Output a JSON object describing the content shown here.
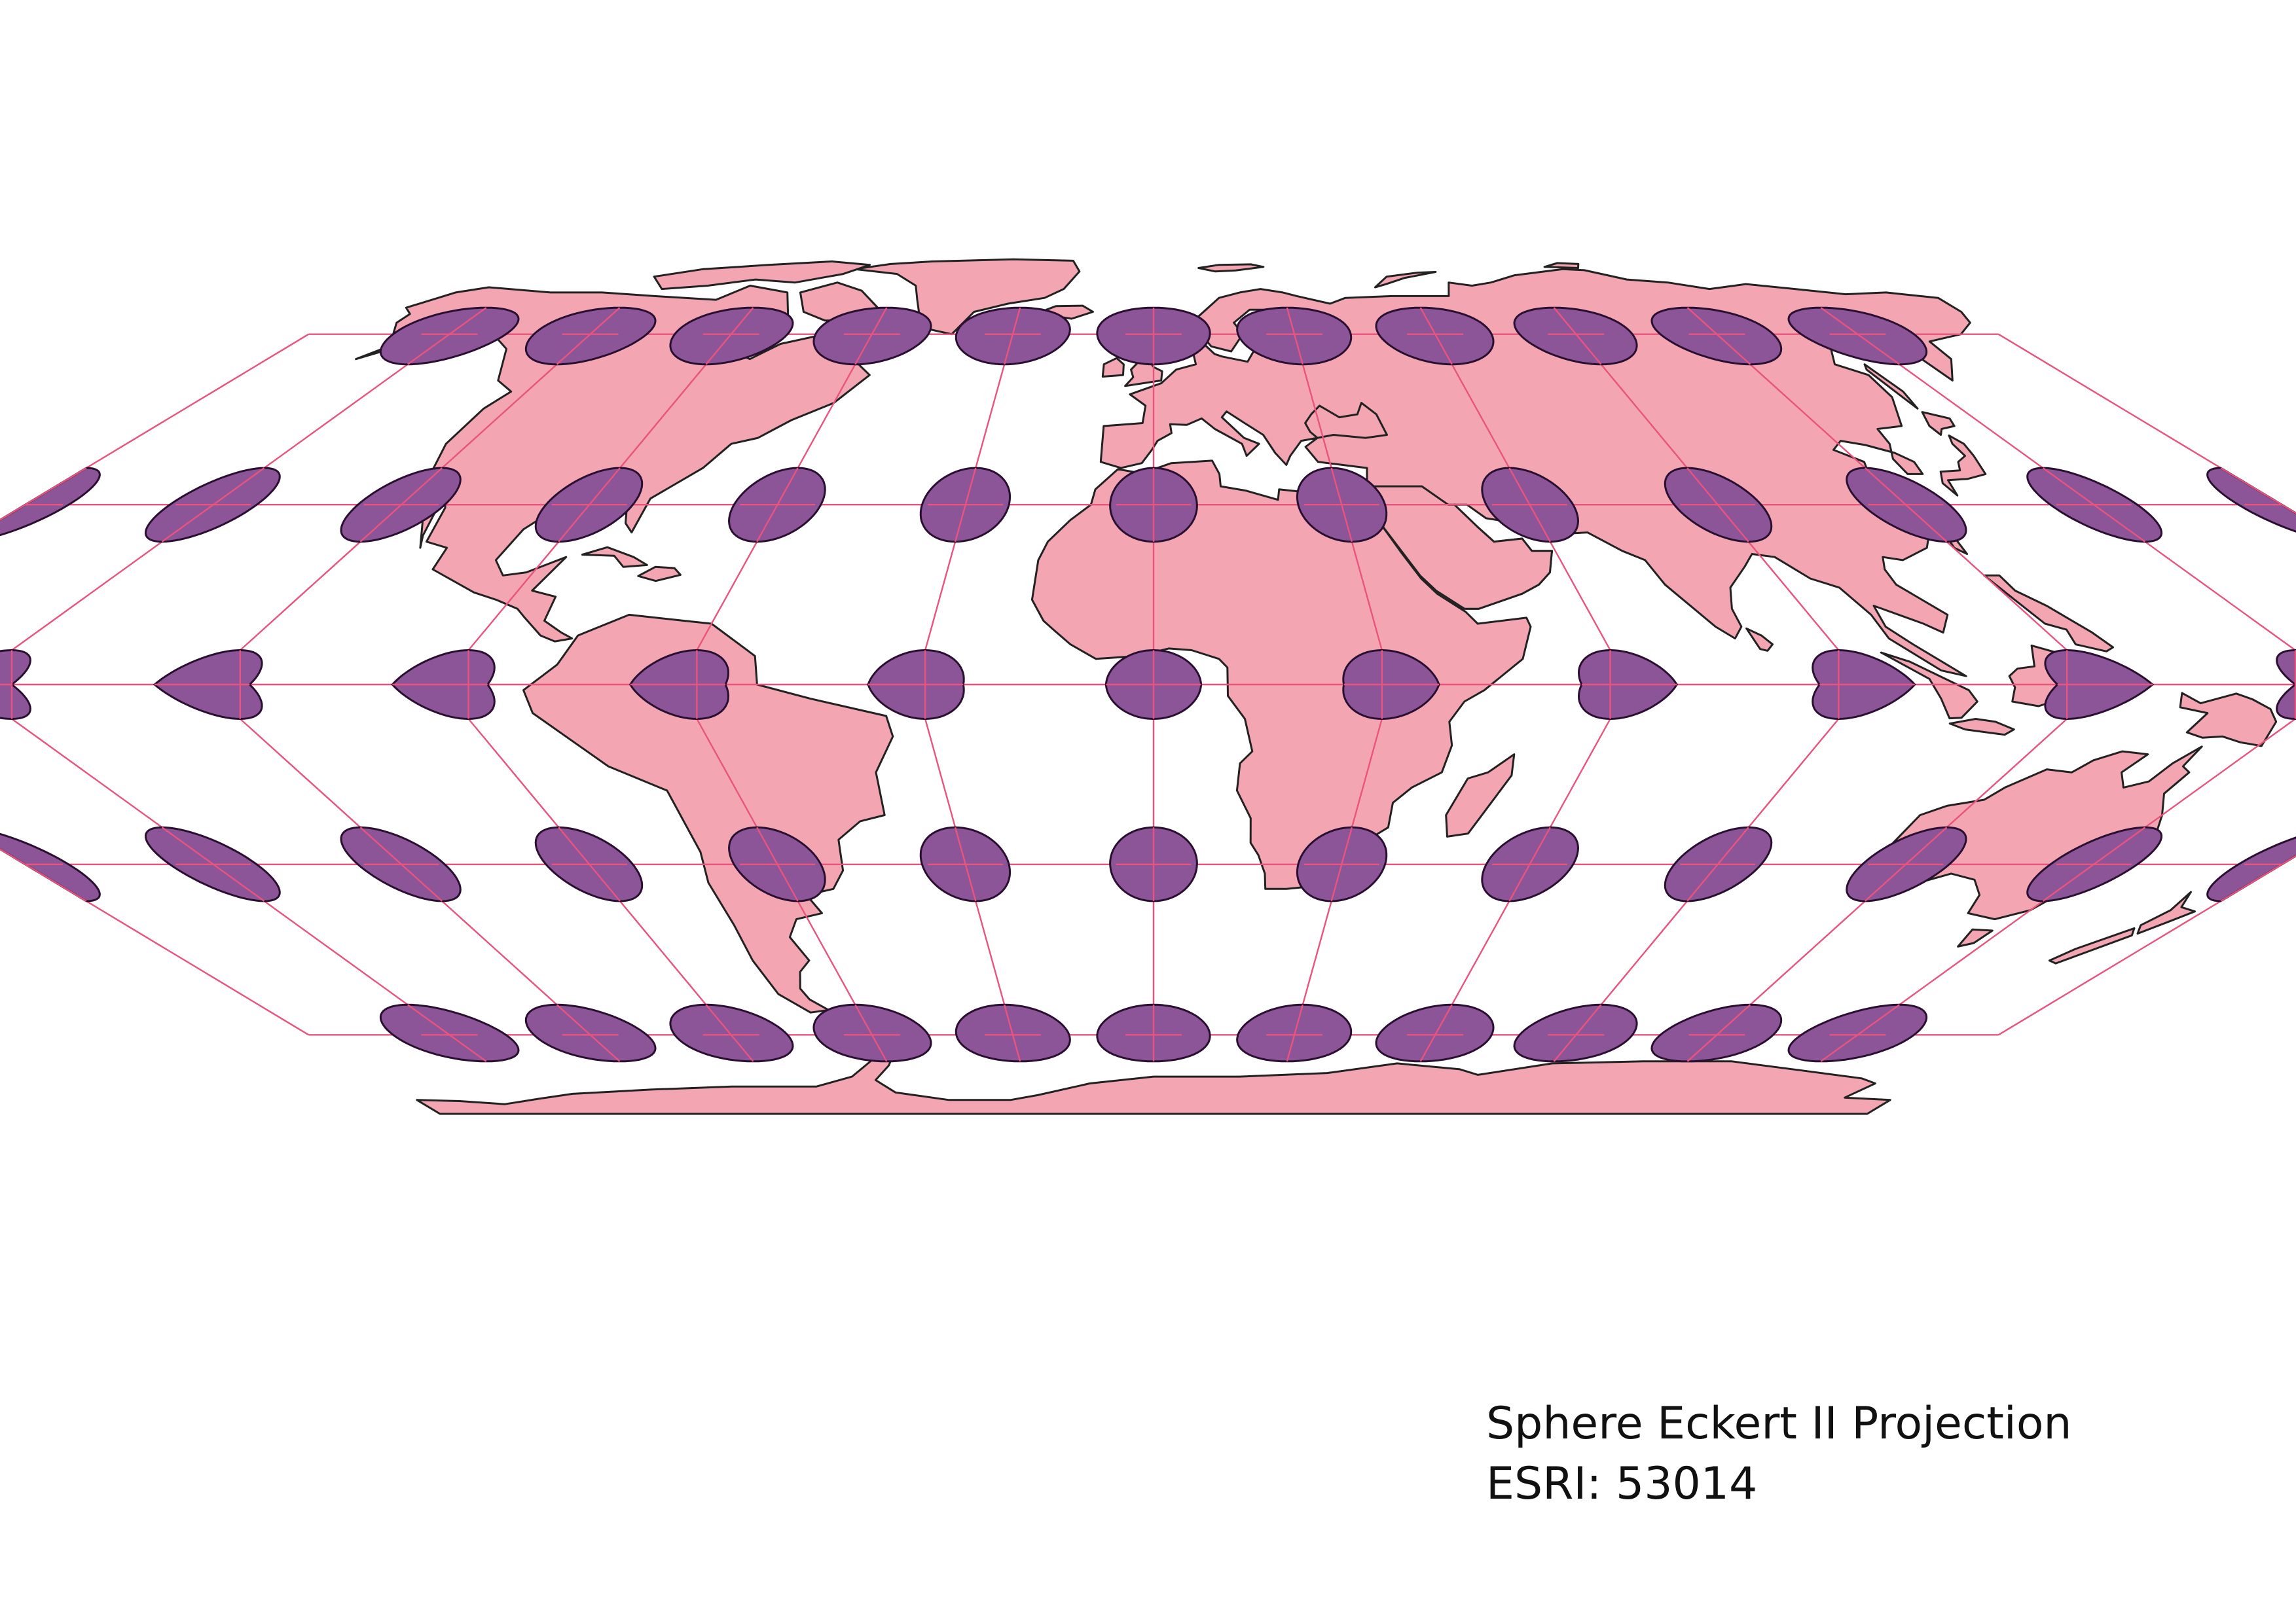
{
  "caption": {
    "title": "Sphere Eckert II Projection",
    "code": "ESRI: 53014"
  },
  "colors": {
    "land": "#f3a6b1",
    "coastline": "#222222",
    "graticule": "#e8547e",
    "indicatrix": "#8c5598",
    "indicatrix_outline": "#2a1030"
  },
  "map": {
    "projection": "Eckert II",
    "graticule_longitudes": [
      -180,
      -150,
      -120,
      -90,
      -60,
      -30,
      0,
      30,
      60,
      90,
      120,
      150,
      180
    ],
    "graticule_latitudes": [
      -60,
      -30,
      0,
      30,
      60
    ],
    "tissot_latitudes": [
      -60,
      -30,
      0,
      30,
      60
    ],
    "tissot_longitudes_per_row": {
      "60": [
        -150,
        -120,
        -90,
        -60,
        -30,
        0,
        30,
        60,
        90,
        120,
        150
      ],
      "30": [
        -180,
        -150,
        -120,
        -90,
        -60,
        -30,
        0,
        30,
        60,
        90,
        120,
        150,
        180
      ],
      "0": [
        -180,
        -150,
        -120,
        -90,
        -60,
        -30,
        0,
        30,
        60,
        90,
        120,
        150,
        180
      ],
      "-30": [
        -180,
        -150,
        -120,
        -90,
        -60,
        -30,
        0,
        30,
        60,
        90,
        120,
        150,
        180
      ],
      "-60": [
        -150,
        -120,
        -90,
        -60,
        -30,
        0,
        30,
        60,
        90,
        120,
        150
      ]
    }
  }
}
